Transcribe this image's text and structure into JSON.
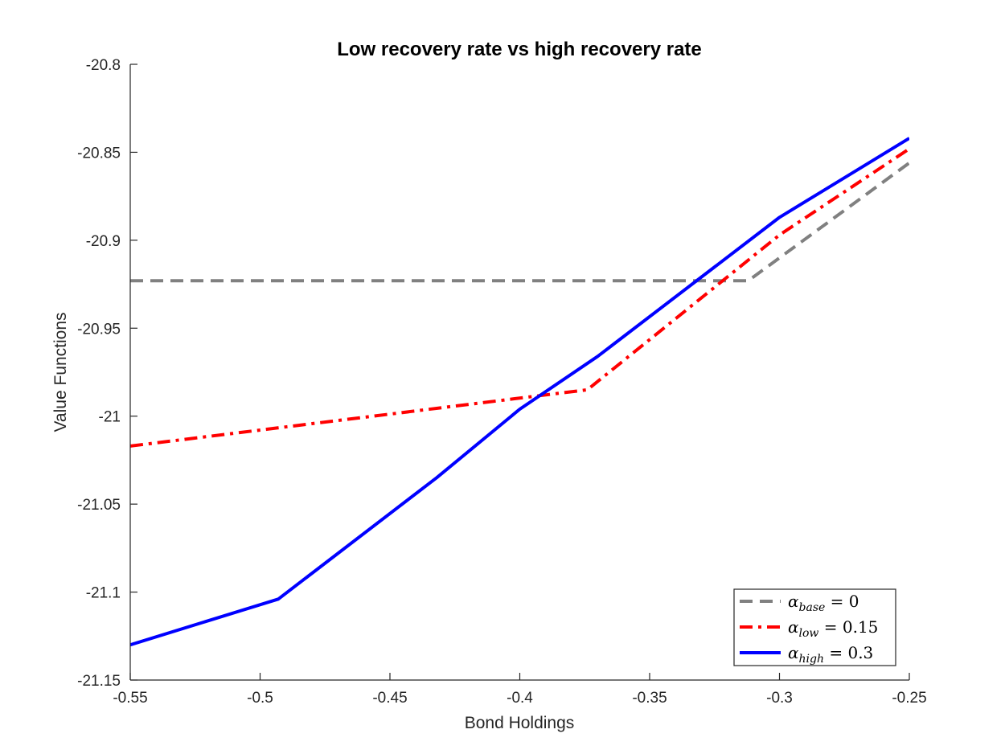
{
  "chart_data": {
    "type": "line",
    "title": "Low recovery rate vs high recovery rate",
    "xlabel": "Bond Holdings",
    "ylabel": "Value Functions",
    "xlim": [
      -0.55,
      -0.25
    ],
    "ylim": [
      -21.15,
      -20.8
    ],
    "xticks": [
      -0.55,
      -0.5,
      -0.45,
      -0.4,
      -0.35,
      -0.3,
      -0.25
    ],
    "xtick_labels": [
      "-0.55",
      "-0.5",
      "-0.45",
      "-0.4",
      "-0.35",
      "-0.3",
      "-0.25"
    ],
    "yticks": [
      -20.8,
      -20.85,
      -20.9,
      -20.95,
      -21,
      -21.05,
      -21.1,
      -21.15
    ],
    "ytick_labels": [
      "-20.8",
      "-20.85",
      "-20.9",
      "-20.95",
      "-21",
      "-21.05",
      "-21.1",
      "-21.15"
    ],
    "grid": false,
    "legend_position": "bottom-right",
    "series": [
      {
        "name": "α_base = 0",
        "legend_symbol": "α",
        "legend_sub": "base",
        "legend_value": "= 0",
        "color": "#808080",
        "style": "dashed",
        "x": [
          -0.55,
          -0.312,
          -0.25
        ],
        "y": [
          -20.923,
          -20.923,
          -20.856
        ]
      },
      {
        "name": "α_low = 0.15",
        "legend_symbol": "α",
        "legend_sub": "low",
        "legend_value": "= 0.15",
        "color": "#ff0000",
        "style": "dashdot",
        "x": [
          -0.55,
          -0.374,
          -0.3,
          -0.25
        ],
        "y": [
          -21.017,
          -20.985,
          -20.897,
          -20.848
        ]
      },
      {
        "name": "α_high = 0.3",
        "legend_symbol": "α",
        "legend_sub": "high",
        "legend_value": "= 0.3",
        "color": "#0000ff",
        "style": "solid",
        "x": [
          -0.55,
          -0.493,
          -0.432,
          -0.4,
          -0.37,
          -0.3,
          -0.25
        ],
        "y": [
          -21.13,
          -21.104,
          -21.035,
          -20.996,
          -20.966,
          -20.887,
          -20.842
        ]
      }
    ]
  }
}
